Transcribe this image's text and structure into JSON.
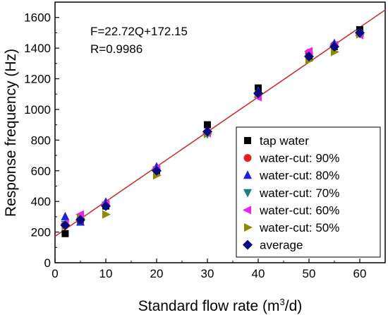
{
  "chart_data": {
    "type": "scatter",
    "xlabel_main": "Standard flow rate (m",
    "xlabel_sup": "3",
    "xlabel_tail": "/d)",
    "ylabel": "Response frequency (Hz)",
    "xlim": [
      0,
      65
    ],
    "ylim": [
      0,
      1700
    ],
    "xticks": [
      0,
      10,
      20,
      30,
      40,
      50,
      60
    ],
    "yticks": [
      0,
      200,
      400,
      600,
      800,
      1000,
      1200,
      1400,
      1600
    ],
    "grid": false,
    "legend_position": "bottom-right",
    "annotations": [
      "F=22.72Q+172.15",
      "R=0.9986"
    ],
    "fit_line": {
      "slope": 22.72,
      "intercept": 172.15,
      "x_range": [
        0,
        65
      ],
      "color": "#cc2a2a"
    },
    "series": [
      {
        "name": "tap water",
        "marker": "square",
        "color": "#000000",
        "x": [
          2,
          5,
          10,
          20,
          30,
          40,
          50,
          55,
          60
        ],
        "y": [
          190,
          280,
          370,
          600,
          900,
          1140,
          1335,
          1410,
          1520
        ]
      },
      {
        "name": "water-cut: 90%",
        "marker": "circle",
        "color": "#e02020",
        "x": [
          2,
          5,
          10,
          20,
          30,
          40,
          50,
          55,
          60
        ],
        "y": [
          245,
          275,
          380,
          610,
          850,
          1100,
          1370,
          1420,
          1500
        ]
      },
      {
        "name": "water-cut: 80%",
        "marker": "triangle-up",
        "color": "#1f1fe0",
        "x": [
          2,
          5,
          10,
          20,
          30,
          40,
          50,
          55,
          60
        ],
        "y": [
          300,
          265,
          395,
          625,
          860,
          1120,
          1365,
          1430,
          1500
        ]
      },
      {
        "name": "water-cut: 70%",
        "marker": "triangle-down",
        "color": "#1a8080",
        "x": [
          2,
          5,
          10,
          20,
          30,
          40,
          50,
          55,
          60
        ],
        "y": [
          250,
          270,
          375,
          605,
          840,
          1090,
          1340,
          1410,
          1495
        ]
      },
      {
        "name": "water-cut: 60%",
        "marker": "triangle-left",
        "color": "#ee22ee",
        "x": [
          2,
          5,
          10,
          20,
          30,
          40,
          50,
          55,
          60
        ],
        "y": [
          255,
          315,
          385,
          615,
          845,
          1080,
          1380,
          1420,
          1485
        ]
      },
      {
        "name": "water-cut: 50%",
        "marker": "triangle-right",
        "color": "#8c8c00",
        "x": [
          2,
          5,
          10,
          20,
          30,
          40,
          50,
          55,
          60
        ],
        "y": [
          240,
          290,
          315,
          570,
          840,
          1100,
          1320,
          1375,
          1490
        ]
      },
      {
        "name": "average",
        "marker": "diamond",
        "color": "#0a0a80",
        "x": [
          2,
          5,
          10,
          20,
          30,
          40,
          50,
          55,
          60
        ],
        "y": [
          245,
          280,
          370,
          600,
          855,
          1105,
          1345,
          1410,
          1500
        ]
      }
    ]
  }
}
